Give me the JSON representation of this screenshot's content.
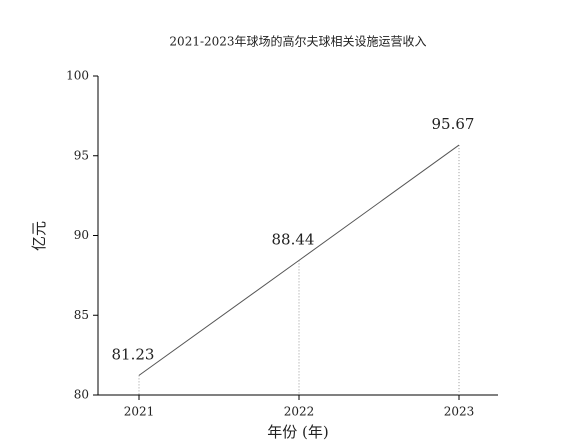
{
  "chart_data": {
    "type": "line",
    "title": "2021-2023年球场的高尔夫球相关设施运营收入",
    "x_label": "年份 (年)",
    "y_label": "亿元",
    "categories": [
      "2021",
      "2022",
      "2023"
    ],
    "values": [
      81.23,
      88.44,
      95.67
    ],
    "color": "#555555",
    "ylim": [
      80,
      100
    ],
    "yticks": [
      80,
      85,
      90,
      95,
      100
    ]
  }
}
